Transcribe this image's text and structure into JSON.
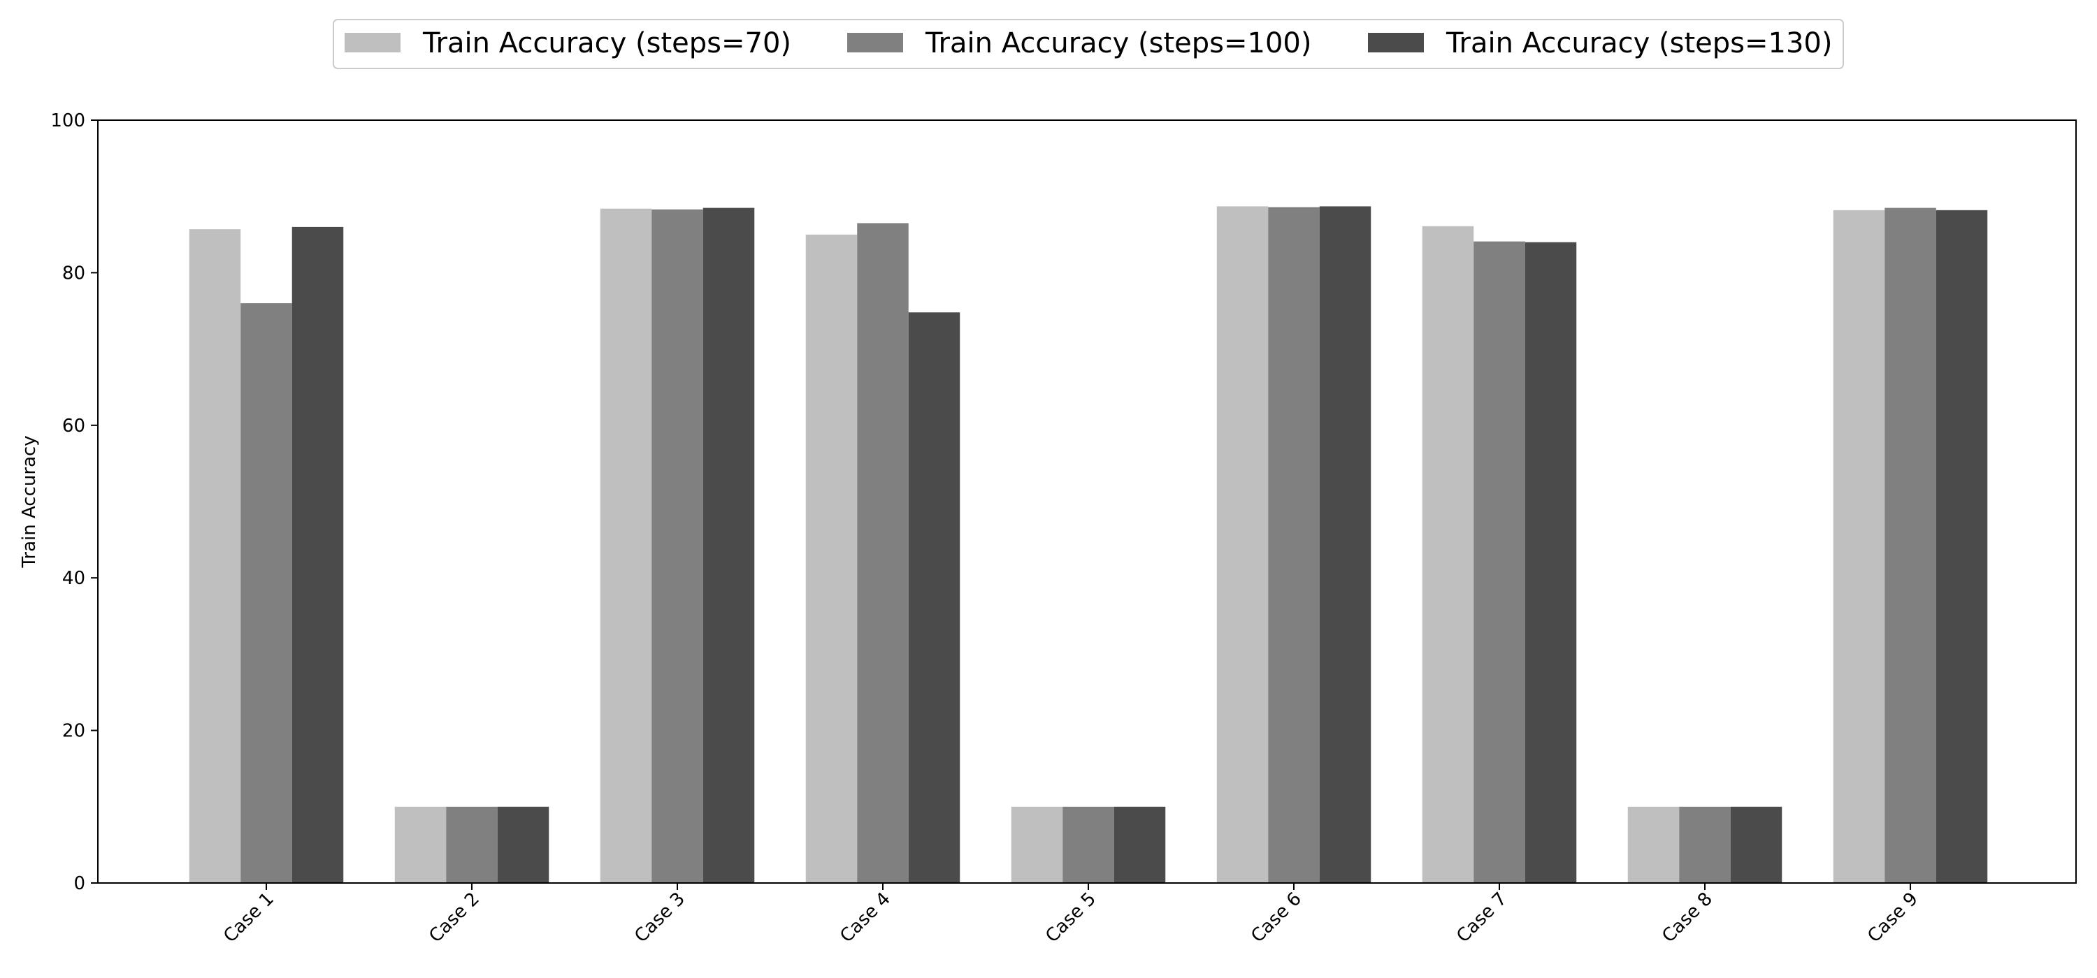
{
  "chart_data": {
    "type": "bar",
    "title": "",
    "xlabel": "",
    "ylabel": "Train Accuracy",
    "ylim": [
      0,
      100
    ],
    "yticks": [
      0,
      20,
      40,
      60,
      80,
      100
    ],
    "grid": false,
    "legend_position": "top-center",
    "categories": [
      "Case 1",
      "Case 2",
      "Case 3",
      "Case 4",
      "Case 5",
      "Case 6",
      "Case 7",
      "Case 8",
      "Case 9"
    ],
    "series": [
      {
        "name": "Train Accuracy (steps=70)",
        "color": "#bfbfbf",
        "values": [
          85.7,
          10.0,
          88.4,
          85.0,
          10.0,
          88.7,
          86.1,
          10.0,
          88.2
        ]
      },
      {
        "name": "Train Accuracy (steps=100)",
        "color": "#808080",
        "values": [
          76.0,
          10.0,
          88.3,
          86.5,
          10.0,
          88.6,
          84.1,
          10.0,
          88.5
        ]
      },
      {
        "name": "Train Accuracy (steps=130)",
        "color": "#4b4b4b",
        "values": [
          86.0,
          10.0,
          88.5,
          74.8,
          10.0,
          88.7,
          84.0,
          10.0,
          88.2
        ]
      }
    ]
  }
}
